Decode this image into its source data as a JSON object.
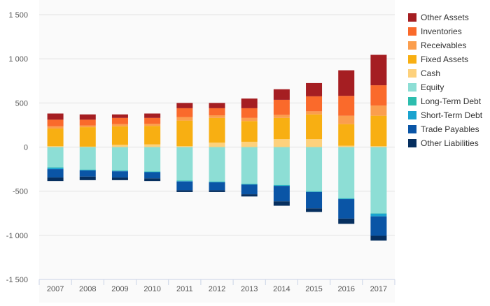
{
  "chart_data": {
    "type": "bar",
    "stacked": true,
    "categories": [
      "2007",
      "2008",
      "2009",
      "2010",
      "2011",
      "2012",
      "2013",
      "2014",
      "2015",
      "2016",
      "2017"
    ],
    "ylim": [
      -1500,
      1500
    ],
    "yticks": [
      -1500,
      -1000,
      -500,
      0,
      500,
      1000,
      1500
    ],
    "ytick_labels": [
      "-1 500",
      "-1 000",
      "-500",
      "0",
      "500",
      "1 000",
      "1 500"
    ],
    "grid": true,
    "legend_position": "right",
    "series": [
      {
        "name": "Cash",
        "color": "#FDD17C",
        "values": [
          10,
          5,
          25,
          30,
          10,
          50,
          60,
          90,
          90,
          15,
          10
        ]
      },
      {
        "name": "Fixed Assets",
        "color": "#F8AF12",
        "values": [
          200,
          220,
          210,
          210,
          290,
          280,
          235,
          240,
          280,
          245,
          345
        ]
      },
      {
        "name": "Receivables",
        "color": "#FB9E4E",
        "values": [
          25,
          20,
          25,
          25,
          40,
          30,
          35,
          35,
          35,
          95,
          115
        ]
      },
      {
        "name": "Inventories",
        "color": "#FA6A2B",
        "values": [
          75,
          65,
          70,
          65,
          100,
          80,
          110,
          170,
          170,
          225,
          230
        ]
      },
      {
        "name": "Other Assets",
        "color": "#A51E22",
        "values": [
          70,
          60,
          40,
          50,
          60,
          60,
          110,
          120,
          150,
          290,
          345
        ]
      },
      {
        "name": "Equity",
        "color": "#8DDED5",
        "values": [
          -230,
          -255,
          -265,
          -275,
          -380,
          -390,
          -415,
          -430,
          -500,
          -580,
          -750
        ]
      },
      {
        "name": "Long-Term Debt",
        "color": "#2DBDAE",
        "values": [
          -5,
          -5,
          -5,
          -5,
          -5,
          -5,
          -5,
          -5,
          -5,
          -5,
          -5
        ]
      },
      {
        "name": "Short-Term Debt",
        "color": "#1AA3CF",
        "values": [
          -15,
          -5,
          -5,
          -5,
          -5,
          -5,
          -5,
          -5,
          -5,
          -5,
          -30
        ]
      },
      {
        "name": "Trade Payables",
        "color": "#0A55A6",
        "values": [
          -95,
          -70,
          -70,
          -70,
          -100,
          -90,
          -110,
          -175,
          -185,
          -220,
          -220
        ]
      },
      {
        "name": "Other Liabilities",
        "color": "#062F5F",
        "values": [
          -40,
          -40,
          -30,
          -30,
          -20,
          -20,
          -25,
          -50,
          -40,
          -60,
          -55
        ]
      }
    ],
    "legend_order": [
      "Other Assets",
      "Inventories",
      "Receivables",
      "Fixed Assets",
      "Cash",
      "Equity",
      "Long-Term Debt",
      "Short-Term Debt",
      "Trade Payables",
      "Other Liabilities"
    ]
  }
}
